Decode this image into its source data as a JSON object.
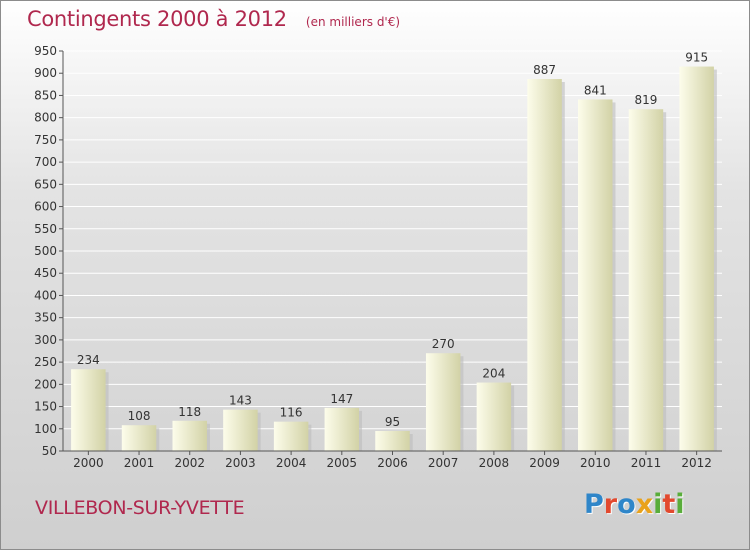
{
  "title": "Contingents 2000 à 2012",
  "subtitle": "(en milliers d'€)",
  "commune": "VILLEBON-SUR-YVETTE",
  "logo": {
    "text": "Proxiti",
    "letters": [
      {
        "ch": "P",
        "color": "#2f86c9"
      },
      {
        "ch": "r",
        "color": "#e2492e"
      },
      {
        "ch": "o",
        "color": "#2f86c9"
      },
      {
        "ch": "x",
        "color": "#e9a21c"
      },
      {
        "ch": "i",
        "color": "#59ad3a"
      },
      {
        "ch": "t",
        "color": "#e2492e"
      },
      {
        "ch": "i",
        "color": "#59ad3a"
      }
    ]
  },
  "colors": {
    "title": "#b0284e",
    "bar_light": "#fdfdeb",
    "bar_dark": "#d2d2a6",
    "axis": "#555555",
    "grid": "#ffffff",
    "text": "#333333"
  },
  "chart_data": {
    "type": "bar",
    "categories": [
      "2000",
      "2001",
      "2002",
      "2003",
      "2004",
      "2005",
      "2006",
      "2007",
      "2008",
      "2009",
      "2010",
      "2011",
      "2012"
    ],
    "values": [
      234,
      108,
      118,
      143,
      116,
      147,
      95,
      270,
      204,
      887,
      841,
      819,
      915
    ],
    "ylim": [
      50,
      950
    ],
    "yticks": [
      50,
      100,
      150,
      200,
      250,
      300,
      350,
      400,
      450,
      500,
      550,
      600,
      650,
      700,
      750,
      800,
      850,
      900,
      950
    ],
    "grid": true,
    "data_labels": true
  }
}
